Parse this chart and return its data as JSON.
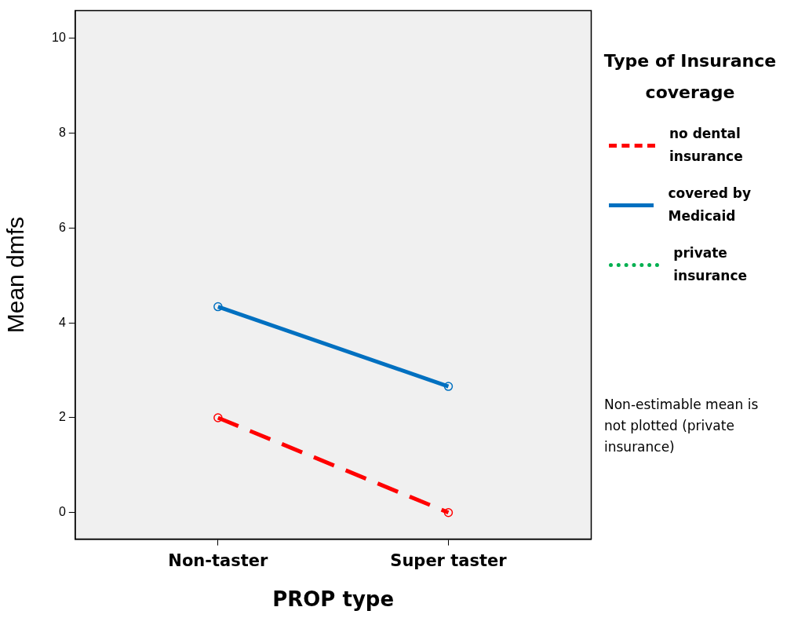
{
  "chart_data": {
    "type": "line",
    "xlabel": "PROP type",
    "ylabel": "Mean dmfs",
    "legend_title": "Type of Insurance coverage",
    "categories": [
      "Non-taster",
      "Super taster"
    ],
    "series": [
      {
        "name": "no dental insurance",
        "color": "#ff0000",
        "line_style": "dashed",
        "values": [
          2.0,
          0.0
        ]
      },
      {
        "name": "covered by Medicaid",
        "color": "#0070c0",
        "line_style": "solid",
        "values": [
          4.34,
          2.66
        ]
      },
      {
        "name": "private insurance",
        "color": "#00b050",
        "line_style": "dotted",
        "values": [
          null,
          null
        ]
      }
    ],
    "ylim": [
      -0.56,
      10.58
    ],
    "yticks": [
      0,
      2,
      4,
      6,
      8,
      10
    ],
    "grid": false,
    "legend": "right",
    "marker": "circle",
    "annotations": [
      "Non-estimable mean is not plotted (private insurance)"
    ]
  }
}
